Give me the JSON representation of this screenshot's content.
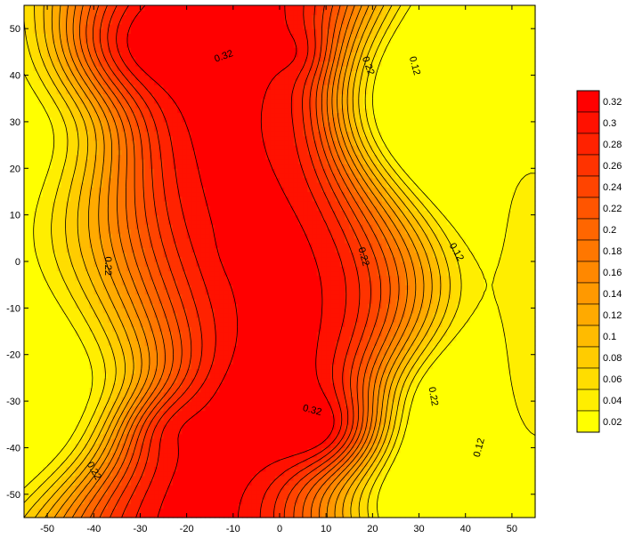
{
  "chart_data": {
    "type": "heatmap",
    "subtype": "filled-contour",
    "title": "",
    "xlabel": "",
    "ylabel": "",
    "xlim": [
      -55,
      55
    ],
    "ylim": [
      -55,
      55
    ],
    "x_ticks": [
      "-50",
      "-40",
      "-30",
      "-20",
      "-10",
      "0",
      "10",
      "20",
      "30",
      "40",
      "50"
    ],
    "y_ticks": [
      "50",
      "40",
      "30",
      "20",
      "10",
      "0",
      "-10",
      "-20",
      "-30",
      "-40",
      "-50"
    ],
    "colorbar": {
      "levels": [
        0.02,
        0.04,
        0.06,
        0.08,
        0.1,
        0.12,
        0.14,
        0.16,
        0.18,
        0.2,
        0.22,
        0.24,
        0.26,
        0.28,
        0.3,
        0.32
      ],
      "labels": [
        "0.32",
        "0.3",
        "0.28",
        "0.26",
        "0.24",
        "0.22",
        "0.2",
        "0.18",
        "0.16",
        "0.14",
        "0.12",
        "0.1",
        "0.08",
        "0.06",
        "0.04",
        "0.02"
      ],
      "colors": [
        "#ffff00",
        "#ffee00",
        "#ffdd00",
        "#ffcc00",
        "#ffbb00",
        "#ffaa00",
        "#ff9900",
        "#ff8800",
        "#ff7700",
        "#ff6600",
        "#ff5500",
        "#ff4400",
        "#ff3300",
        "#ff2200",
        "#ff1100",
        "#ff0000"
      ]
    },
    "contour_labels": [
      {
        "text": "0.32",
        "x": -12,
        "y": 44,
        "angle": -20
      },
      {
        "text": "0.22",
        "x": 19,
        "y": 42,
        "angle": 70
      },
      {
        "text": "0.12",
        "x": 29,
        "y": 42,
        "angle": 75
      },
      {
        "text": "0.22",
        "x": -37,
        "y": -1,
        "angle": 90
      },
      {
        "text": "0.22",
        "x": 18,
        "y": 1,
        "angle": 75
      },
      {
        "text": "0.12",
        "x": 38,
        "y": 2,
        "angle": 60
      },
      {
        "text": "0.22",
        "x": 33,
        "y": -29,
        "angle": 80
      },
      {
        "text": "0.32",
        "x": 7,
        "y": -32,
        "angle": 15
      },
      {
        "text": "0.12",
        "x": 43,
        "y": -40,
        "angle": -75
      },
      {
        "text": "0.22",
        "x": -40,
        "y": -45,
        "angle": 60
      }
    ],
    "field_peaks": [
      {
        "x": -22,
        "y": 47,
        "value": 0.35,
        "sx": 16,
        "sy": 10
      },
      {
        "x": 0,
        "y": 45,
        "value": 0.33,
        "sx": 5,
        "sy": 4
      },
      {
        "x": 5,
        "y": -35,
        "value": 0.35,
        "sx": 11,
        "sy": 8
      },
      {
        "x": -6,
        "y": 3,
        "value": 0.33,
        "sx": 4,
        "sy": 4
      },
      {
        "x": -16,
        "y": -37,
        "value": 0.325,
        "sx": 10,
        "sy": 6
      },
      {
        "x": -6,
        "y": 28,
        "value": 0.315,
        "sx": 10,
        "sy": 18
      }
    ],
    "field_lows": [
      {
        "x": 54,
        "y": 44,
        "value": 0.03,
        "sx": 12,
        "sy": 20
      },
      {
        "x": 54,
        "y": 12,
        "value": 0.03,
        "sx": 8,
        "sy": 16
      },
      {
        "x": 56,
        "y": -20,
        "value": 0.06,
        "sx": 10,
        "sy": 30
      }
    ]
  }
}
